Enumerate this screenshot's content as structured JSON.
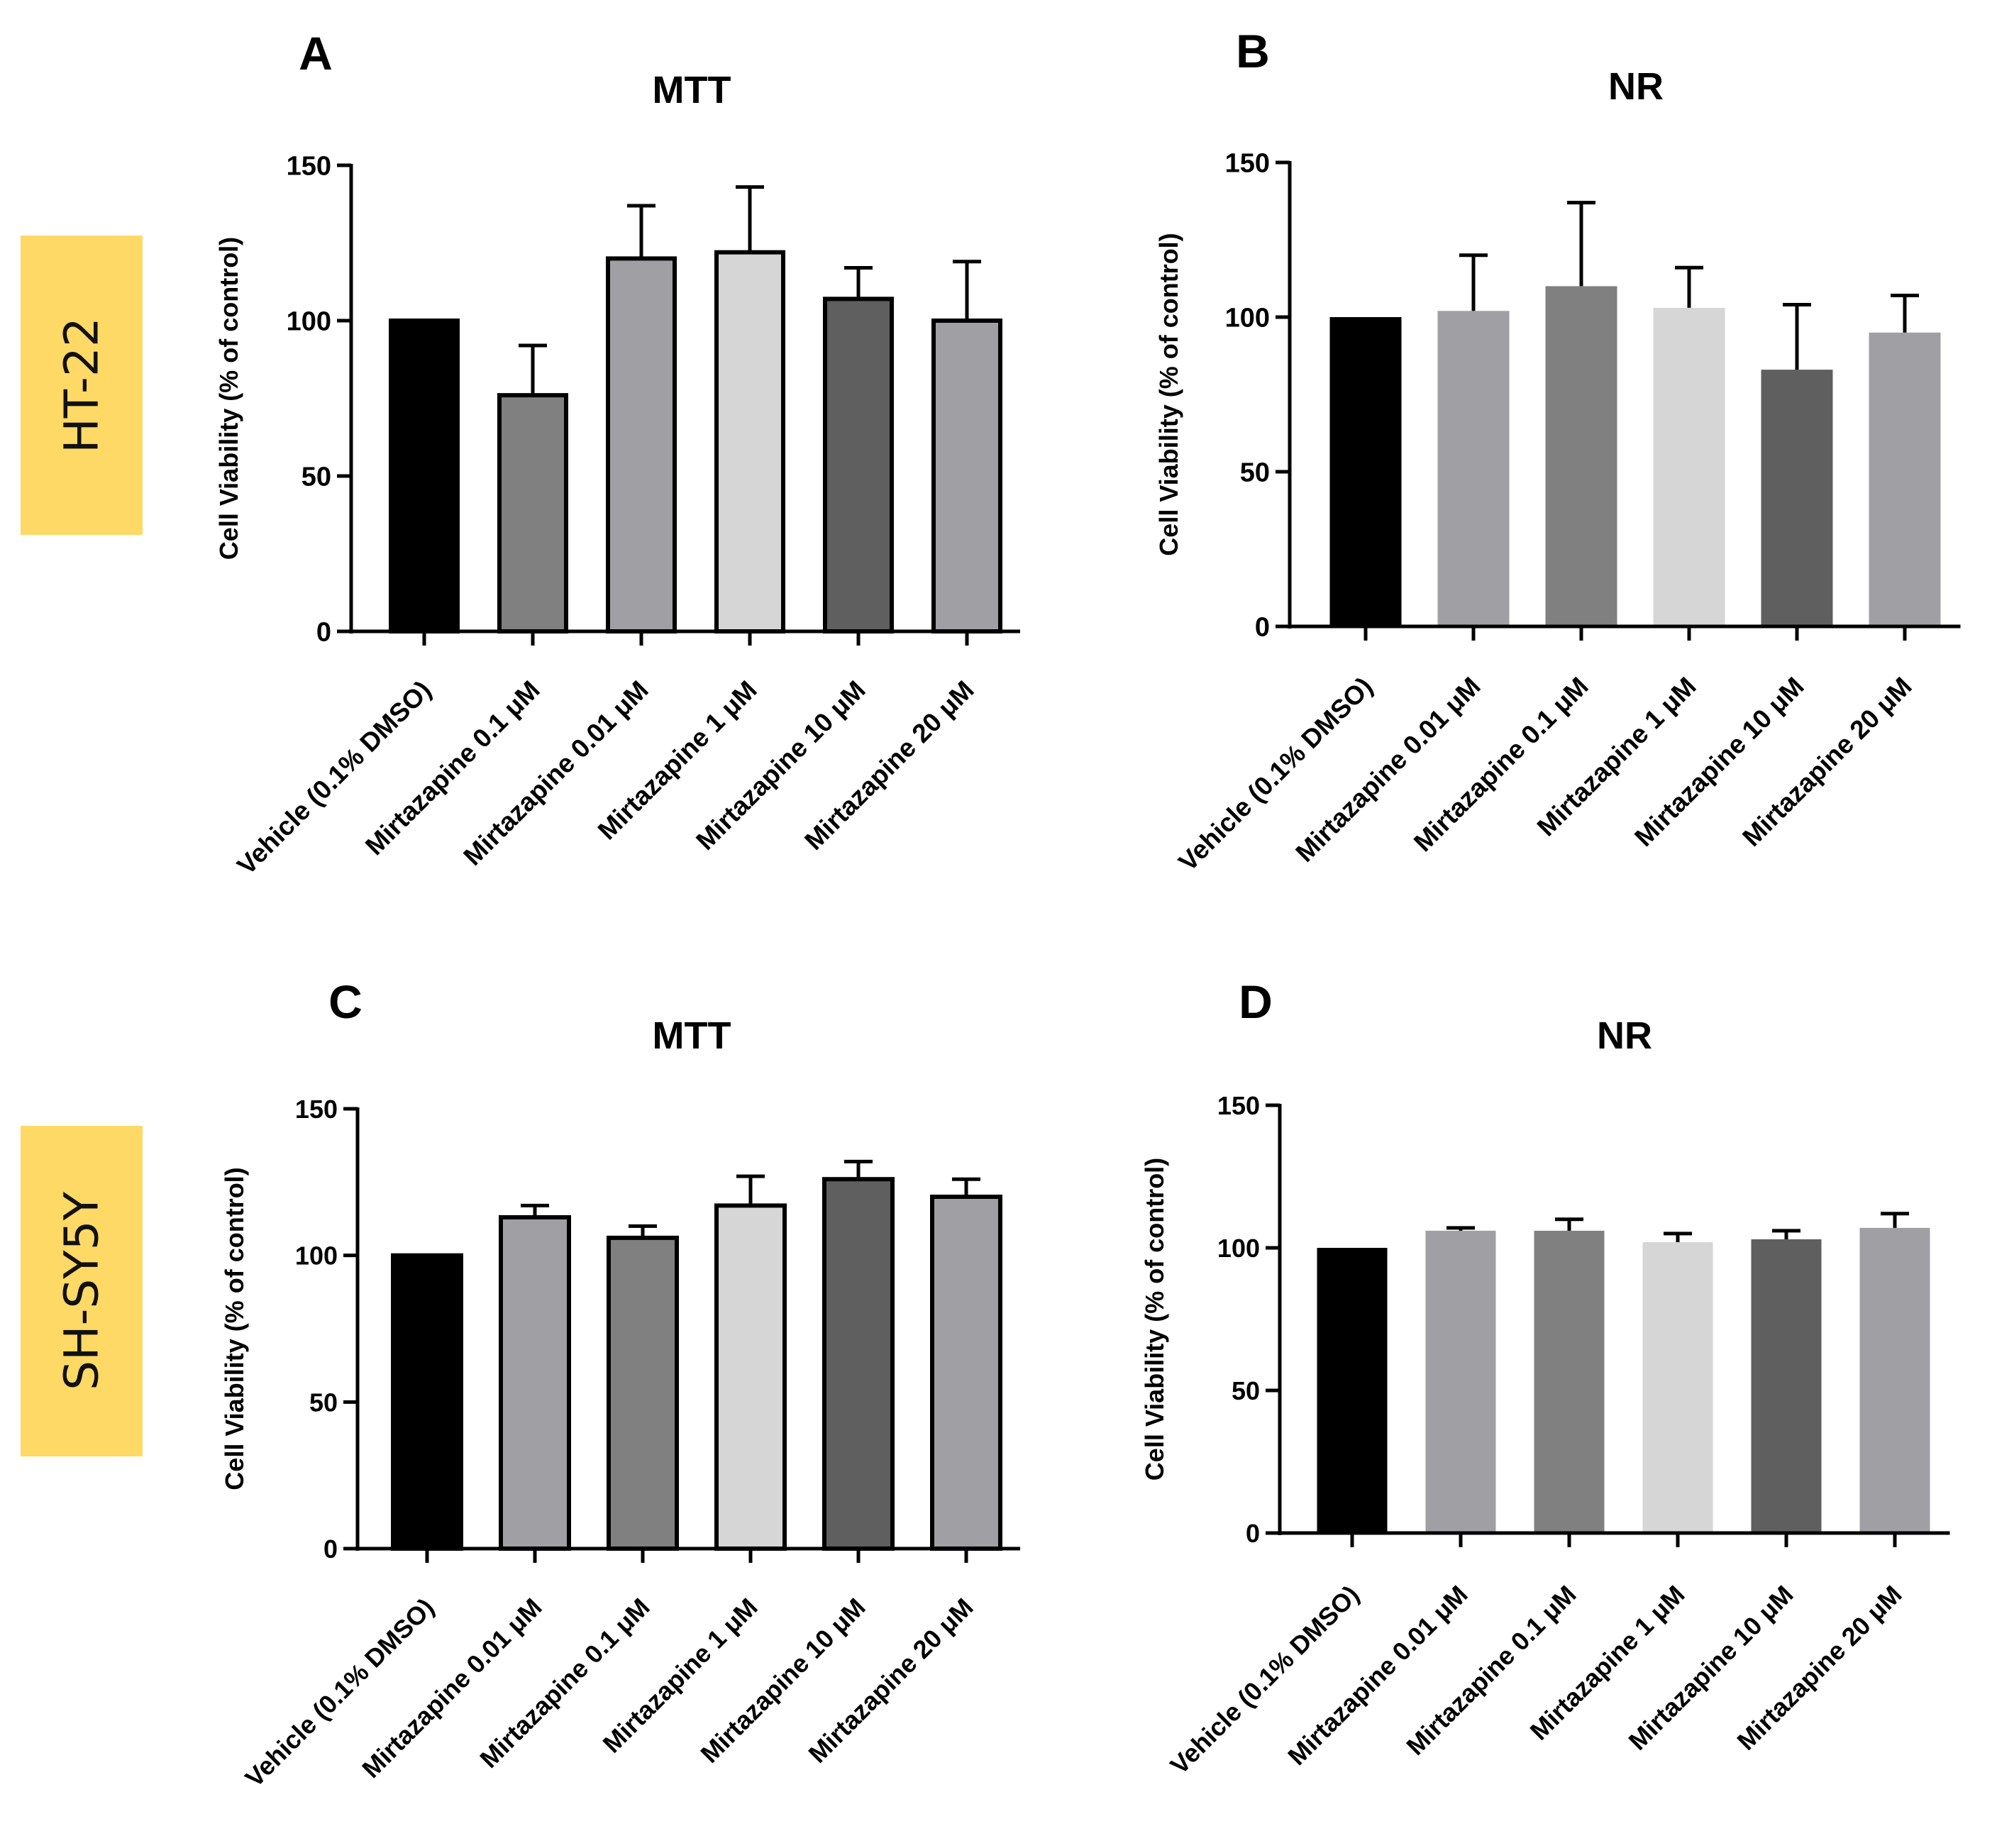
{
  "row_labels": [
    "HT-22",
    "SH-SY5Y"
  ],
  "colors": {
    "row_label_bg": "#FFD966",
    "axis": "#000000"
  },
  "chart_data": [
    {
      "panel": "A",
      "type": "bar",
      "title": "MTT",
      "cell_line": "HT-22",
      "ylabel": "Cell Viability (%  of control)",
      "ylim": [
        0,
        150
      ],
      "yticks": [
        0,
        50,
        100,
        150
      ],
      "categories": [
        "Vehicle (0.1% DMSO)",
        "Mirtazapine 0.1 μM",
        "Mirtazapine 0.01 μM",
        "Mirtazapine 1 μM",
        "Mirtazapine 10 μM",
        "Mirtazapine 20 μM"
      ],
      "values": [
        100,
        76,
        120,
        122,
        107,
        100
      ],
      "errors": [
        0,
        16,
        17,
        21,
        10,
        19
      ],
      "colors": [
        "#000000",
        "#808080",
        "#a0a0a4",
        "#d6d6d6",
        "#5f5f5f",
        "#a0a0a4"
      ],
      "bordered": true
    },
    {
      "panel": "B",
      "type": "bar",
      "title": "NR",
      "cell_line": "HT-22",
      "ylabel": "Cell Viability (%  of control)",
      "ylim": [
        0,
        150
      ],
      "yticks": [
        0,
        50,
        100,
        150
      ],
      "categories": [
        "Vehicle (0.1% DMSO)",
        "Mirtazapine 0.01 μM",
        "Mirtazapine 0.1 μM",
        "Mirtazapine 1 μM",
        "Mirtazapine 10 μM",
        "Mirtazapine 20 μM"
      ],
      "values": [
        100,
        102,
        110,
        103,
        83,
        95
      ],
      "errors": [
        0,
        18,
        27,
        13,
        21,
        12
      ],
      "colors": [
        "#000000",
        "#a0a0a4",
        "#808080",
        "#d6d6d6",
        "#5f5f5f",
        "#a0a0a4"
      ],
      "bordered": false
    },
    {
      "panel": "C",
      "type": "bar",
      "title": "MTT",
      "cell_line": "SH-SY5Y",
      "ylabel": "Cell Viability (% of control)",
      "ylim": [
        0,
        150
      ],
      "yticks": [
        0,
        50,
        100,
        150
      ],
      "categories": [
        "Vehicle (0.1% DMSO)",
        "Mirtazapine 0.01 μM",
        "Mirtazapine 0.1 μM",
        "Mirtazapine 1 μM",
        "Mirtazapine 10 μM",
        "Mirtazapine 20 μM"
      ],
      "values": [
        100,
        113,
        106,
        117,
        126,
        120
      ],
      "errors": [
        0,
        4,
        4,
        10,
        6,
        6
      ],
      "colors": [
        "#000000",
        "#a0a0a4",
        "#808080",
        "#d6d6d6",
        "#5f5f5f",
        "#a0a0a4"
      ],
      "bordered": true
    },
    {
      "panel": "D",
      "type": "bar",
      "title": "NR",
      "cell_line": "SH-SY5Y",
      "ylabel": "Cell Viability (% of control)",
      "ylim": [
        0,
        150
      ],
      "yticks": [
        0,
        50,
        100,
        150
      ],
      "categories": [
        "Vehicle (0.1% DMSO)",
        "Mirtazapine 0.01 μM",
        "Mirtazapine 0.1 μM",
        "Mirtazapine 1 μM",
        "Mirtazapine 10 μM",
        "Mirtazapine 20 μM"
      ],
      "values": [
        100,
        106,
        106,
        102,
        103,
        107
      ],
      "errors": [
        0,
        1,
        4,
        3,
        3,
        5
      ],
      "colors": [
        "#000000",
        "#a0a0a4",
        "#808080",
        "#d6d6d6",
        "#5f5f5f",
        "#a0a0a4"
      ],
      "bordered": false
    }
  ]
}
